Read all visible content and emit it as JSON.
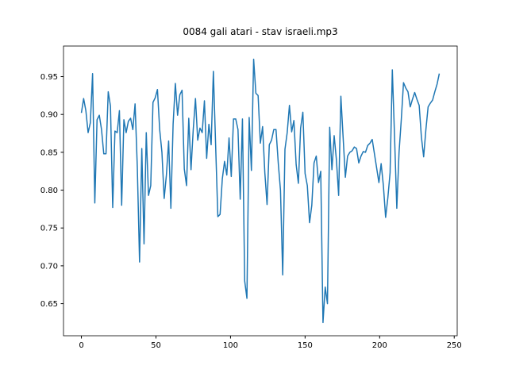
{
  "chart_data": {
    "type": "line",
    "title": "0084 gali atari - stav israeli.mp3",
    "color": "#1f77b4",
    "x": [
      0,
      1.5,
      3,
      4.5,
      6,
      7.5,
      9,
      10.5,
      12,
      13.5,
      15,
      16.5,
      18,
      19.5,
      21,
      22.5,
      24,
      25.5,
      27,
      28.5,
      30,
      31.5,
      33,
      34.5,
      36,
      37.5,
      39,
      40.5,
      42,
      43.5,
      45,
      46.5,
      48,
      49.5,
      51,
      52.5,
      54,
      55.5,
      57,
      58.5,
      60,
      61.5,
      63,
      64.5,
      66,
      67.5,
      69,
      70.5,
      72,
      73.5,
      75,
      76.5,
      78,
      79.5,
      81,
      82.5,
      84,
      85.5,
      87,
      88.5,
      90,
      91.5,
      93,
      94.5,
      96,
      97.5,
      99,
      100.5,
      102,
      103.5,
      105,
      106.5,
      108,
      109.5,
      111,
      112.5,
      114,
      115.5,
      117,
      118.5,
      120,
      121.5,
      123,
      124.5,
      126,
      127.5,
      129,
      130.5,
      132,
      133.5,
      135,
      136.5,
      138,
      139.5,
      141,
      142.5,
      144,
      145.5,
      147,
      148.5,
      150,
      151.5,
      153,
      154.5,
      156,
      157.5,
      159,
      160.5,
      162,
      163.5,
      165,
      166.5,
      168,
      169.5,
      171,
      172.5,
      174,
      175.5,
      177,
      178.5,
      180,
      181.5,
      183,
      184.5,
      186,
      187.5,
      189,
      190.5,
      192,
      193.5,
      195,
      196.5,
      198,
      199.5,
      201,
      202.5,
      204,
      205.5,
      207,
      208.5,
      210,
      211.5,
      213,
      214.5,
      216,
      217.5,
      219,
      220.5,
      222,
      223.5,
      225,
      226.5,
      228,
      229.5,
      231,
      232.5,
      234,
      235.5,
      237,
      238.5,
      240
    ],
    "values": [
      0.902,
      0.921,
      0.905,
      0.876,
      0.889,
      0.954,
      0.783,
      0.893,
      0.899,
      0.88,
      0.848,
      0.848,
      0.93,
      0.911,
      0.777,
      0.878,
      0.876,
      0.905,
      0.78,
      0.893,
      0.876,
      0.891,
      0.895,
      0.88,
      0.914,
      0.83,
      0.705,
      0.855,
      0.729,
      0.876,
      0.793,
      0.806,
      0.916,
      0.922,
      0.933,
      0.88,
      0.85,
      0.789,
      0.82,
      0.865,
      0.776,
      0.887,
      0.941,
      0.899,
      0.926,
      0.932,
      0.828,
      0.806,
      0.895,
      0.827,
      0.88,
      0.921,
      0.866,
      0.882,
      0.876,
      0.918,
      0.842,
      0.887,
      0.86,
      0.957,
      0.86,
      0.765,
      0.768,
      0.815,
      0.838,
      0.82,
      0.869,
      0.818,
      0.894,
      0.894,
      0.88,
      0.788,
      0.894,
      0.68,
      0.657,
      0.896,
      0.826,
      0.973,
      0.928,
      0.925,
      0.862,
      0.884,
      0.823,
      0.781,
      0.86,
      0.866,
      0.88,
      0.88,
      0.836,
      0.8,
      0.688,
      0.854,
      0.876,
      0.912,
      0.877,
      0.892,
      0.834,
      0.809,
      0.882,
      0.903,
      0.822,
      0.806,
      0.757,
      0.78,
      0.836,
      0.845,
      0.81,
      0.825,
      0.625,
      0.672,
      0.65,
      0.883,
      0.827,
      0.872,
      0.84,
      0.793,
      0.924,
      0.87,
      0.817,
      0.845,
      0.85,
      0.852,
      0.857,
      0.855,
      0.836,
      0.845,
      0.851,
      0.85,
      0.859,
      0.862,
      0.867,
      0.848,
      0.829,
      0.81,
      0.835,
      0.806,
      0.764,
      0.79,
      0.823,
      0.959,
      0.87,
      0.776,
      0.85,
      0.893,
      0.942,
      0.935,
      0.93,
      0.91,
      0.92,
      0.929,
      0.92,
      0.912,
      0.87,
      0.844,
      0.88,
      0.91,
      0.915,
      0.919,
      0.93,
      0.94,
      0.954
    ],
    "xlim": [
      -12,
      252
    ],
    "xticks": [
      0,
      50,
      100,
      150,
      200,
      250
    ],
    "ylim": [
      0.6076,
      0.9904
    ],
    "yticks": [
      0.65,
      {
        "value": 0.7,
        "label": "0.70"
      },
      0.75,
      {
        "value": 0.8,
        "label": "0.80"
      },
      0.85,
      {
        "value": 0.9,
        "label": "0.90"
      },
      0.95
    ],
    "grid": false
  }
}
